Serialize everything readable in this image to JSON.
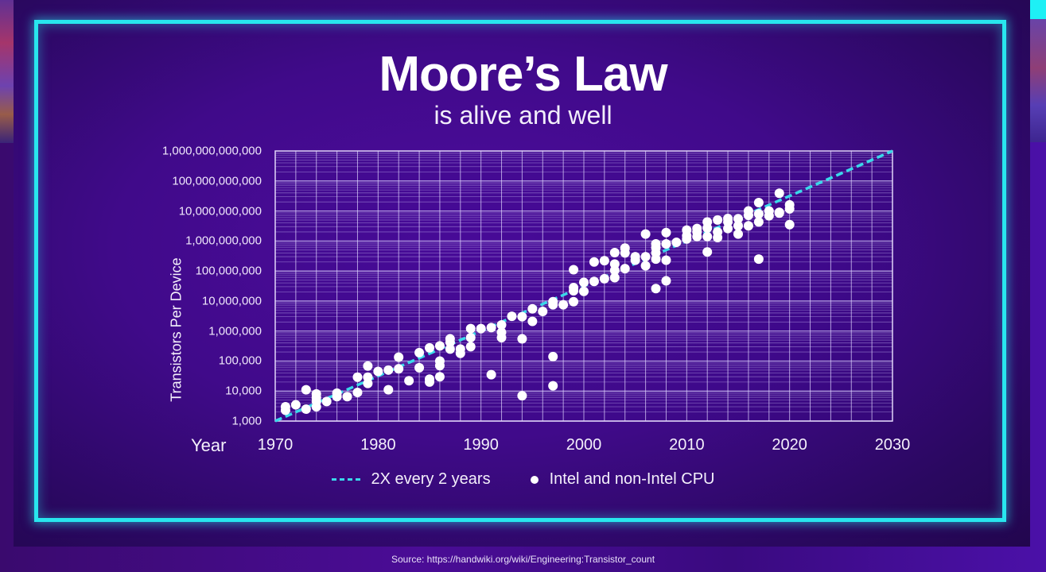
{
  "slide": {
    "title": "Moore’s Law",
    "subtitle": "is alive and well",
    "source": "Source: https://handwiki.org/wiki/Engineering:Transistor_count",
    "colors": {
      "frame": "#28e6ee",
      "background": "#400a8a",
      "trend_line": "#3ad8ea",
      "points": "#ffffff"
    }
  },
  "chart_data": {
    "type": "scatter",
    "title": "Moore’s Law",
    "subtitle": "is alive and well",
    "xlabel": "Year",
    "ylabel": "Transistors Per Device",
    "xlim": [
      1970,
      2030
    ],
    "ylim": [
      1000,
      1000000000000
    ],
    "yscale": "log",
    "grid": true,
    "legend_position": "bottom",
    "x_ticks": [
      "1970",
      "1980",
      "1990",
      "2000",
      "2010",
      "2020",
      "2030"
    ],
    "y_ticks": [
      "1,000",
      "10,000",
      "100,000",
      "1,000,000",
      "10,000,000",
      "100,000,000",
      "1,000,000,000",
      "10,000,000,000",
      "100,000,000,000",
      "1,000,000,000,000"
    ],
    "series": [
      {
        "name": "2X every 2 years",
        "style": "dashed-line",
        "points": [
          [
            1970,
            1000
          ],
          [
            2030,
            1000000000000
          ]
        ]
      },
      {
        "name": "Intel and non-Intel CPU",
        "style": "dot",
        "points": [
          [
            1971,
            2300
          ],
          [
            1971,
            3000
          ],
          [
            1972,
            3500
          ],
          [
            1973,
            2500
          ],
          [
            1973,
            11000
          ],
          [
            1974,
            4500
          ],
          [
            1974,
            6000
          ],
          [
            1974,
            3000
          ],
          [
            1974,
            8000
          ],
          [
            1975,
            4500
          ],
          [
            1976,
            6500
          ],
          [
            1976,
            8500
          ],
          [
            1977,
            6500
          ],
          [
            1978,
            9000
          ],
          [
            1978,
            29000
          ],
          [
            1979,
            18000
          ],
          [
            1979,
            29000
          ],
          [
            1979,
            68000
          ],
          [
            1980,
            45000
          ],
          [
            1981,
            50000
          ],
          [
            1981,
            11000
          ],
          [
            1982,
            55000
          ],
          [
            1982,
            134000
          ],
          [
            1983,
            22000
          ],
          [
            1984,
            60000
          ],
          [
            1984,
            190000
          ],
          [
            1985,
            275000
          ],
          [
            1985,
            25000
          ],
          [
            1985,
            20000
          ],
          [
            1986,
            100000
          ],
          [
            1986,
            70000
          ],
          [
            1986,
            30000
          ],
          [
            1986,
            320000
          ],
          [
            1987,
            250000
          ],
          [
            1987,
            420000
          ],
          [
            1987,
            550000
          ],
          [
            1988,
            180000
          ],
          [
            1988,
            250000
          ],
          [
            1989,
            1200000
          ],
          [
            1989,
            600000
          ],
          [
            1989,
            300000
          ],
          [
            1990,
            1200000
          ],
          [
            1991,
            1300000
          ],
          [
            1991,
            35000
          ],
          [
            1992,
            1600000
          ],
          [
            1992,
            900000
          ],
          [
            1992,
            600000
          ],
          [
            1993,
            3100000
          ],
          [
            1994,
            3000000
          ],
          [
            1994,
            550000
          ],
          [
            1994,
            7000
          ],
          [
            1995,
            2100000
          ],
          [
            1995,
            5500000
          ],
          [
            1996,
            4500000
          ],
          [
            1997,
            7500000
          ],
          [
            1997,
            9500000
          ],
          [
            1997,
            140000
          ],
          [
            1997,
            15000
          ],
          [
            1998,
            7500000
          ],
          [
            1999,
            9500000
          ],
          [
            1999,
            22000000
          ],
          [
            1999,
            28000000
          ],
          [
            1999,
            110000000
          ],
          [
            2000,
            21000000
          ],
          [
            2000,
            42000000
          ],
          [
            2001,
            45000000
          ],
          [
            2001,
            200000000
          ],
          [
            2002,
            55000000
          ],
          [
            2002,
            220000000
          ],
          [
            2003,
            60000000
          ],
          [
            2003,
            105000000
          ],
          [
            2003,
            170000000
          ],
          [
            2003,
            410000000
          ],
          [
            2004,
            120000000
          ],
          [
            2004,
            580000000
          ],
          [
            2004,
            400000000
          ],
          [
            2005,
            230000000
          ],
          [
            2005,
            300000000
          ],
          [
            2006,
            300000000
          ],
          [
            2006,
            150000000
          ],
          [
            2006,
            1700000000
          ],
          [
            2007,
            250000000
          ],
          [
            2007,
            600000000
          ],
          [
            2007,
            400000000
          ],
          [
            2007,
            800000000
          ],
          [
            2007,
            26000000
          ],
          [
            2008,
            230000000
          ],
          [
            2008,
            800000000
          ],
          [
            2008,
            1900000000
          ],
          [
            2008,
            47000000
          ],
          [
            2009,
            900000000
          ],
          [
            2010,
            1170000000
          ],
          [
            2010,
            2300000000
          ],
          [
            2010,
            1500000000
          ],
          [
            2011,
            2000000000
          ],
          [
            2011,
            1400000000
          ],
          [
            2011,
            2600000000
          ],
          [
            2012,
            1400000000
          ],
          [
            2012,
            2700000000
          ],
          [
            2012,
            4300000000
          ],
          [
            2012,
            430000000
          ],
          [
            2013,
            2000000000
          ],
          [
            2013,
            5000000000
          ],
          [
            2013,
            1300000000
          ],
          [
            2014,
            2600000000
          ],
          [
            2014,
            4300000000
          ],
          [
            2014,
            5600000000
          ],
          [
            2015,
            1700000000
          ],
          [
            2015,
            3200000000
          ],
          [
            2015,
            5500000000
          ],
          [
            2016,
            3200000000
          ],
          [
            2016,
            7200000000
          ],
          [
            2016,
            10000000000
          ],
          [
            2017,
            4300000000
          ],
          [
            2017,
            8000000000
          ],
          [
            2017,
            19000000000
          ],
          [
            2017,
            250000000
          ],
          [
            2018,
            6900000000
          ],
          [
            2018,
            10000000000
          ],
          [
            2019,
            8500000000
          ],
          [
            2019,
            39000000000
          ],
          [
            2019,
            9000000000
          ],
          [
            2020,
            11800000000
          ],
          [
            2020,
            16000000000
          ],
          [
            2020,
            3500000000
          ]
        ]
      }
    ]
  },
  "legend": {
    "items": [
      {
        "label": "2X every 2 years",
        "icon": "dashed-line-icon"
      },
      {
        "label": "Intel and non-Intel CPU",
        "icon": "dot-icon"
      }
    ]
  }
}
